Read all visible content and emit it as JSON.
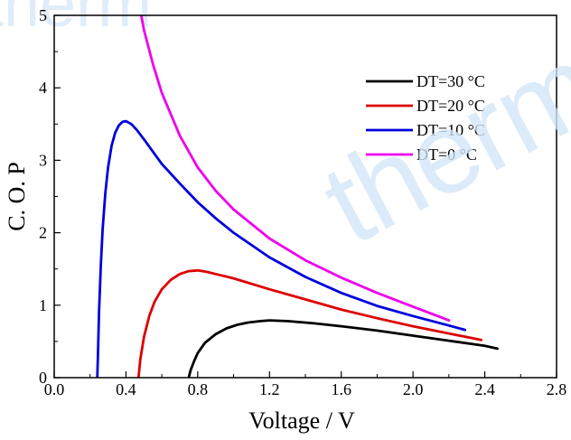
{
  "watermark": {
    "text": "therm"
  },
  "chart_data": {
    "type": "line",
    "title": "",
    "xlabel": "Voltage / V",
    "ylabel": "C. O. P",
    "xlim": [
      0.0,
      2.8
    ],
    "ylim": [
      0,
      5
    ],
    "xticks": [
      "0.0",
      "0.4",
      "0.8",
      "1.2",
      "1.6",
      "2.0",
      "2.4",
      "2.8"
    ],
    "yticks": [
      "0",
      "1",
      "2",
      "3",
      "4",
      "5"
    ],
    "grid": false,
    "legend_position": "top-right",
    "series": [
      {
        "name": "DT=30 °C",
        "color": "#000000",
        "x": [
          0.75,
          0.76,
          0.78,
          0.8,
          0.84,
          0.9,
          0.96,
          1.02,
          1.08,
          1.15,
          1.2,
          1.3,
          1.45,
          1.6,
          1.8,
          2.0,
          2.2,
          2.4,
          2.47
        ],
        "y": [
          0.0,
          0.1,
          0.23,
          0.34,
          0.48,
          0.6,
          0.68,
          0.73,
          0.76,
          0.78,
          0.79,
          0.78,
          0.75,
          0.71,
          0.65,
          0.58,
          0.51,
          0.44,
          0.4
        ]
      },
      {
        "name": "DT=20 °C",
        "color": "#dd0000",
        "x": [
          0.47,
          0.48,
          0.5,
          0.53,
          0.56,
          0.6,
          0.65,
          0.7,
          0.75,
          0.8,
          0.85,
          0.9,
          1.0,
          1.2,
          1.4,
          1.6,
          1.8,
          2.0,
          2.2,
          2.38
        ],
        "y": [
          0.0,
          0.25,
          0.56,
          0.85,
          1.05,
          1.22,
          1.35,
          1.43,
          1.47,
          1.48,
          1.46,
          1.43,
          1.37,
          1.22,
          1.08,
          0.94,
          0.82,
          0.71,
          0.61,
          0.52
        ]
      },
      {
        "name": "DT=10 °C",
        "color": "#0000dd",
        "x": [
          0.24,
          0.245,
          0.25,
          0.26,
          0.27,
          0.285,
          0.3,
          0.32,
          0.34,
          0.36,
          0.38,
          0.4,
          0.43,
          0.46,
          0.5,
          0.55,
          0.6,
          0.7,
          0.8,
          0.9,
          1.0,
          1.2,
          1.4,
          1.6,
          1.8,
          2.0,
          2.2,
          2.29
        ],
        "y": [
          0.0,
          0.45,
          0.9,
          1.55,
          2.05,
          2.55,
          2.9,
          3.2,
          3.38,
          3.48,
          3.53,
          3.54,
          3.5,
          3.42,
          3.29,
          3.12,
          2.95,
          2.68,
          2.42,
          2.2,
          2.0,
          1.66,
          1.39,
          1.17,
          0.99,
          0.85,
          0.72,
          0.66
        ]
      },
      {
        "name": "DT=0 °C",
        "color": "#ee00ee",
        "x": [
          0.485,
          0.5,
          0.55,
          0.6,
          0.7,
          0.8,
          0.9,
          1.0,
          1.2,
          1.4,
          1.6,
          1.8,
          2.0,
          2.2
        ],
        "y": [
          5.0,
          4.8,
          4.33,
          3.93,
          3.34,
          2.9,
          2.58,
          2.32,
          1.92,
          1.62,
          1.38,
          1.17,
          0.98,
          0.79
        ]
      }
    ]
  }
}
